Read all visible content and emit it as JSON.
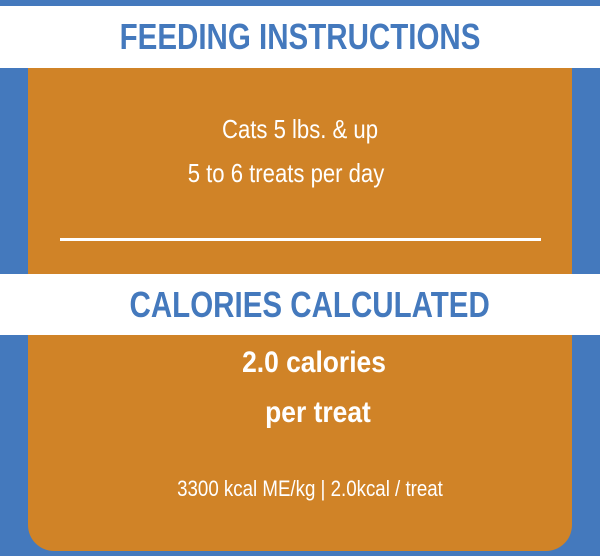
{
  "feeding": {
    "heading": "FEEDING INSTRUCTIONS",
    "line1": "Cats 5 lbs. & up",
    "line2": "5 to 6 treats per day"
  },
  "calories": {
    "heading": "CALORIES CALCULATED",
    "line1": "2.0 calories",
    "line2": "per treat",
    "detail": "3300 kcal ME/kg | 2.0kcal / treat"
  },
  "colors": {
    "blue": "#4479bd",
    "orange": "#d08327",
    "white": "#ffffff"
  }
}
